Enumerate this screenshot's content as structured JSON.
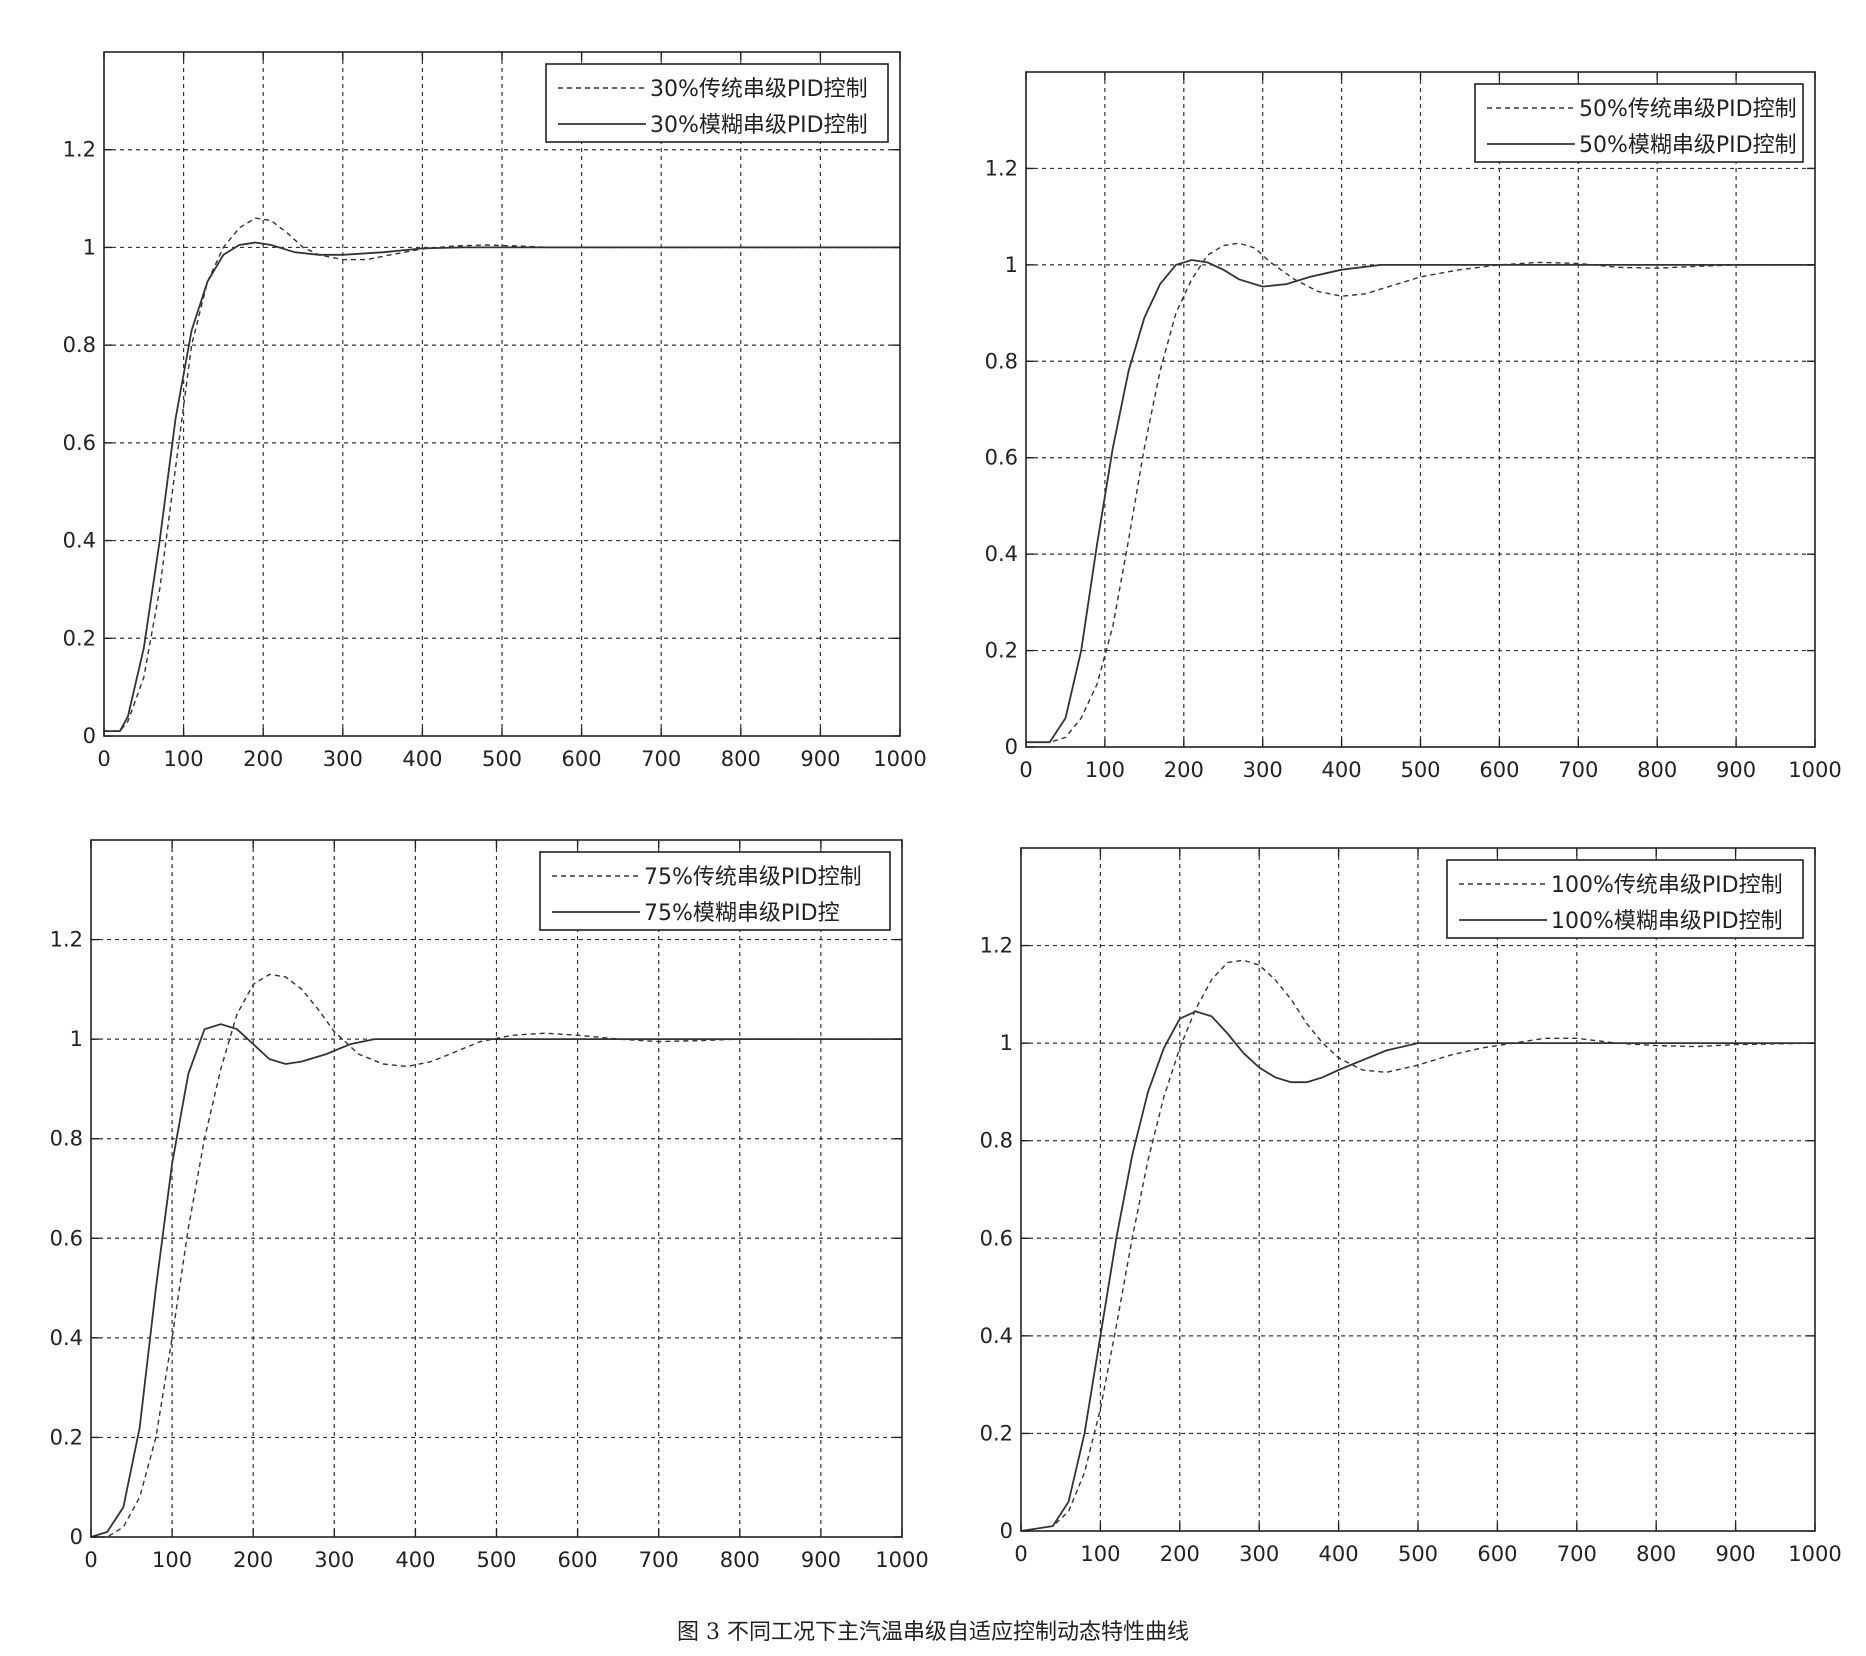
{
  "caption": "图 3 不同工况下主汽温串级自适应控制动态特性曲线",
  "colors": {
    "axis": "#222222",
    "grid": "#333333",
    "line": "#333333",
    "background": "#ffffff"
  },
  "chart_data": [
    {
      "type": "line",
      "xlim": [
        0,
        1000
      ],
      "ylim": [
        0,
        1.4
      ],
      "xticks": [
        "0",
        "100",
        "200",
        "300",
        "400",
        "500",
        "600",
        "700",
        "800",
        "900",
        "1000"
      ],
      "yticks": [
        "0",
        "0.2",
        "0.4",
        "0.6",
        "0.8",
        "1",
        "1.2"
      ],
      "grid": true,
      "legend_position": "top-right",
      "series": [
        {
          "name": "30%传统串级PID控制",
          "style": "dashed",
          "x": [
            0,
            20,
            30,
            50,
            70,
            90,
            110,
            130,
            150,
            170,
            190,
            210,
            230,
            250,
            270,
            300,
            330,
            360,
            400,
            440,
            480,
            520,
            560,
            600,
            700,
            800,
            900,
            1000
          ],
          "y": [
            0.01,
            0.01,
            0.03,
            0.12,
            0.3,
            0.55,
            0.8,
            0.93,
            1.0,
            1.04,
            1.06,
            1.055,
            1.03,
            1.0,
            0.985,
            0.975,
            0.975,
            0.985,
            0.997,
            1.003,
            1.005,
            1.003,
            1.0,
            1.0,
            1.0,
            1.0,
            1.0,
            1.0
          ]
        },
        {
          "name": "30%模糊串级PID控制",
          "style": "solid",
          "x": [
            0,
            20,
            30,
            50,
            70,
            90,
            110,
            130,
            150,
            170,
            190,
            210,
            240,
            270,
            300,
            350,
            400,
            450,
            500,
            600,
            700,
            800,
            900,
            1000
          ],
          "y": [
            0.01,
            0.01,
            0.04,
            0.18,
            0.4,
            0.65,
            0.83,
            0.93,
            0.985,
            1.005,
            1.01,
            1.005,
            0.99,
            0.985,
            0.985,
            0.99,
            0.998,
            1.0,
            1.0,
            1.0,
            1.0,
            1.0,
            1.0,
            1.0
          ]
        }
      ]
    },
    {
      "type": "line",
      "xlim": [
        0,
        1000
      ],
      "ylim": [
        0,
        1.4
      ],
      "xticks": [
        "0",
        "100",
        "200",
        "300",
        "400",
        "500",
        "600",
        "700",
        "800",
        "900",
        "1000"
      ],
      "yticks": [
        "0",
        "0.2",
        "0.4",
        "0.6",
        "0.8",
        "1",
        "1.2"
      ],
      "grid": true,
      "legend_position": "top-right",
      "series": [
        {
          "name": "50%传统串级PID控制",
          "style": "dashed",
          "x": [
            0,
            30,
            50,
            70,
            90,
            110,
            130,
            150,
            170,
            190,
            210,
            230,
            250,
            270,
            290,
            310,
            340,
            370,
            400,
            430,
            460,
            500,
            550,
            600,
            650,
            700,
            750,
            800,
            850,
            900,
            1000
          ],
          "y": [
            0.01,
            0.01,
            0.02,
            0.06,
            0.13,
            0.25,
            0.43,
            0.62,
            0.78,
            0.9,
            0.97,
            1.02,
            1.04,
            1.045,
            1.035,
            1.005,
            0.97,
            0.945,
            0.935,
            0.94,
            0.955,
            0.975,
            0.99,
            1.0,
            1.005,
            1.003,
            0.995,
            0.993,
            0.997,
            1.0,
            1.0
          ]
        },
        {
          "name": "50%模糊串级PID控制",
          "style": "solid",
          "x": [
            0,
            30,
            50,
            70,
            90,
            110,
            130,
            150,
            170,
            190,
            210,
            230,
            250,
            270,
            300,
            330,
            360,
            400,
            450,
            500,
            600,
            700,
            800,
            900,
            1000
          ],
          "y": [
            0.01,
            0.01,
            0.06,
            0.2,
            0.42,
            0.62,
            0.78,
            0.89,
            0.96,
            1.0,
            1.01,
            1.005,
            0.99,
            0.97,
            0.955,
            0.96,
            0.975,
            0.99,
            1.0,
            1.0,
            1.0,
            1.0,
            1.0,
            1.0,
            1.0
          ]
        }
      ]
    },
    {
      "type": "line",
      "xlim": [
        0,
        1000
      ],
      "ylim": [
        0,
        1.4
      ],
      "xticks": [
        "0",
        "100",
        "200",
        "300",
        "400",
        "500",
        "600",
        "700",
        "800",
        "900",
        "1000"
      ],
      "yticks": [
        "0",
        "0.2",
        "0.4",
        "0.6",
        "0.8",
        "1",
        "1.2"
      ],
      "grid": true,
      "legend_position": "top-right",
      "series": [
        {
          "name": "75%传统串级PID控制",
          "style": "dashed",
          "x": [
            0,
            20,
            40,
            60,
            80,
            100,
            120,
            140,
            160,
            180,
            200,
            220,
            240,
            260,
            280,
            300,
            330,
            360,
            390,
            420,
            450,
            480,
            520,
            560,
            600,
            650,
            700,
            750,
            800,
            900,
            1000
          ],
          "y": [
            0.0,
            0.0,
            0.02,
            0.08,
            0.2,
            0.4,
            0.62,
            0.8,
            0.94,
            1.05,
            1.11,
            1.13,
            1.125,
            1.1,
            1.06,
            1.015,
            0.97,
            0.95,
            0.945,
            0.955,
            0.975,
            0.995,
            1.008,
            1.012,
            1.008,
            1.0,
            0.995,
            0.997,
            1.0,
            1.0,
            1.0
          ]
        },
        {
          "name": "75%模糊串级PID控",
          "style": "solid",
          "x": [
            0,
            20,
            40,
            60,
            80,
            100,
            120,
            140,
            160,
            180,
            200,
            220,
            240,
            260,
            290,
            320,
            350,
            400,
            450,
            500,
            600,
            700,
            800,
            900,
            1000
          ],
          "y": [
            0.0,
            0.01,
            0.06,
            0.22,
            0.5,
            0.75,
            0.93,
            1.02,
            1.03,
            1.02,
            0.99,
            0.96,
            0.95,
            0.955,
            0.97,
            0.99,
            1.0,
            1.0,
            1.0,
            1.0,
            1.0,
            1.0,
            1.0,
            1.0,
            1.0
          ]
        }
      ]
    },
    {
      "type": "line",
      "xlim": [
        0,
        1000
      ],
      "ylim": [
        0,
        1.4
      ],
      "xticks": [
        "0",
        "100",
        "200",
        "300",
        "400",
        "500",
        "600",
        "700",
        "800",
        "900",
        "1000"
      ],
      "yticks": [
        "0",
        "0.2",
        "0.4",
        "0.6",
        "0.8",
        "1",
        "1.2"
      ],
      "grid": true,
      "legend_position": "top-right",
      "series": [
        {
          "name": "100%传统串级PID控制",
          "style": "dashed",
          "x": [
            0,
            40,
            60,
            80,
            100,
            120,
            140,
            160,
            180,
            200,
            220,
            240,
            260,
            280,
            300,
            320,
            340,
            360,
            380,
            400,
            430,
            460,
            500,
            540,
            580,
            620,
            660,
            700,
            750,
            800,
            850,
            900,
            1000
          ],
          "y": [
            0.0,
            0.01,
            0.04,
            0.12,
            0.25,
            0.42,
            0.6,
            0.76,
            0.89,
            0.99,
            1.07,
            1.13,
            1.165,
            1.17,
            1.16,
            1.13,
            1.09,
            1.04,
            1.0,
            0.97,
            0.945,
            0.94,
            0.955,
            0.975,
            0.99,
            1.0,
            1.01,
            1.01,
            1.0,
            0.995,
            0.993,
            0.997,
            1.0
          ]
        },
        {
          "name": "100%模糊串级PID控制",
          "style": "solid",
          "x": [
            0,
            40,
            60,
            80,
            100,
            120,
            140,
            160,
            180,
            200,
            220,
            240,
            260,
            280,
            300,
            320,
            340,
            360,
            380,
            400,
            430,
            460,
            500,
            550,
            600,
            700,
            800,
            900,
            1000
          ],
          "y": [
            0.0,
            0.01,
            0.06,
            0.2,
            0.4,
            0.6,
            0.77,
            0.9,
            0.99,
            1.05,
            1.065,
            1.055,
            1.02,
            0.98,
            0.95,
            0.93,
            0.92,
            0.92,
            0.93,
            0.945,
            0.965,
            0.985,
            1.0,
            1.0,
            1.0,
            1.0,
            1.0,
            1.0,
            1.0
          ]
        }
      ]
    }
  ]
}
